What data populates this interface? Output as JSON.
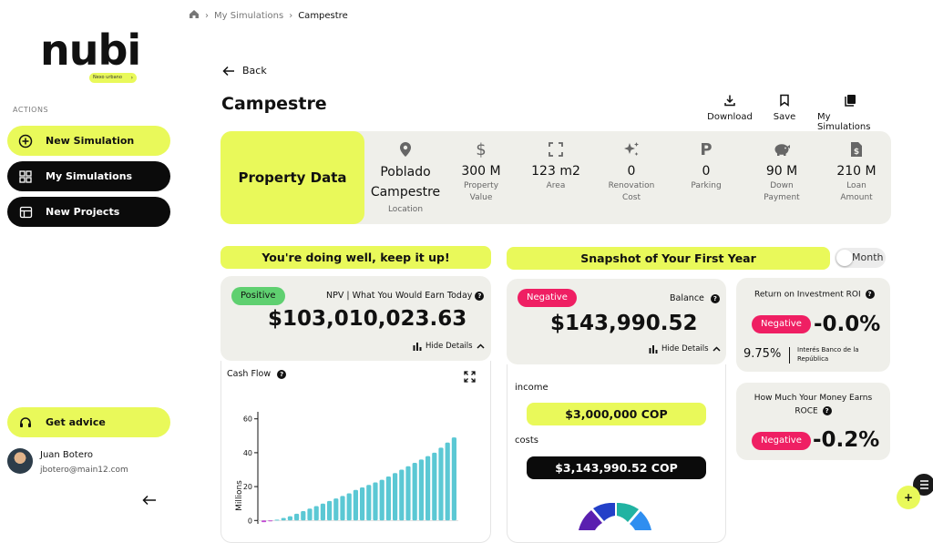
{
  "sidebar": {
    "logo_text": "nubi",
    "logo_tag": "Nexo urbano",
    "section_label": "ACTIONS",
    "buttons": [
      {
        "label": "New Simulation",
        "icon": "plus-circle-icon"
      },
      {
        "label": "My Simulations",
        "icon": "grid-icon"
      },
      {
        "label": "New Projects",
        "icon": "store-icon"
      }
    ],
    "advice_label": "Get advice",
    "user": {
      "name": "Juan Botero",
      "email": "jbotero@main12.com"
    }
  },
  "breadcrumb": {
    "items": [
      "My Simulations",
      "Campestre"
    ]
  },
  "back_label": "Back",
  "page_title": "Campestre",
  "actions": [
    {
      "label": "Download",
      "icon": "download-icon"
    },
    {
      "label": "Save",
      "icon": "bookmark-icon"
    },
    {
      "label": "My Simulations",
      "icon": "collection-icon"
    }
  ],
  "property": {
    "heading": "Property Data",
    "items": [
      {
        "value": "Poblado Campestre",
        "label": "Location",
        "icon": "location-pin-icon"
      },
      {
        "value": "300 M",
        "label": "Property Value",
        "icon": "dollar-icon"
      },
      {
        "value": "123 m2",
        "label": "Area",
        "icon": "expand-icon"
      },
      {
        "value": "0",
        "label": "Renovation Cost",
        "icon": "sparkles-icon"
      },
      {
        "value": "0",
        "label": "Parking",
        "icon": "parking-icon"
      },
      {
        "value": "90 M",
        "label": "Down Payment",
        "icon": "piggy-bank-icon"
      },
      {
        "value": "210 M",
        "label": "Loan Amount",
        "icon": "money-doc-icon"
      }
    ]
  },
  "npv": {
    "banner": "You're doing well, keep it up!",
    "status": "Positive",
    "label": "NPV | What You Would Earn Today",
    "value": "$103,010,023.63",
    "hide_label": "Hide Details"
  },
  "cashflow": {
    "title": "Cash Flow",
    "ylabel": "Millions"
  },
  "chart_data": {
    "type": "bar",
    "title": "Cash Flow",
    "ylabel": "Millions",
    "ylim": [
      -2,
      62
    ],
    "yticks": [
      0,
      20,
      40,
      60
    ],
    "values": [
      -1,
      -0.5,
      0.5,
      1.5,
      2.5,
      4,
      5.5,
      7,
      8.5,
      10,
      11.5,
      13,
      14.5,
      16,
      18,
      19.5,
      21,
      22.5,
      24,
      26,
      28,
      30,
      32,
      34,
      36,
      38,
      40,
      43,
      46,
      49
    ],
    "colors": {
      "negative": "#c44bd6",
      "positive": "#5bc8d4"
    }
  },
  "snapshot": {
    "banner": "Snapshot of Your First Year",
    "toggle_label": "Month",
    "status": "Negative",
    "label": "Balance",
    "value": "$143,990.52",
    "hide_label": "Hide Details",
    "income_label": "income",
    "income_value": "$3,000,000 COP",
    "costs_label": "costs",
    "costs_value": "$3,143,990.52 COP"
  },
  "roi": {
    "title": "Return on Investment ROI",
    "status": "Negative",
    "value": "-0.0%",
    "bank_rate": "9.75%",
    "bank_label": "Interés Banco de la República"
  },
  "roce": {
    "title": "How Much Your Money Earns",
    "subtitle": "ROCE",
    "status": "Negative",
    "value": "-0.2%"
  },
  "colors": {
    "accent": "#e9f95a",
    "negative": "#ef1f63",
    "positive": "#5fd070",
    "panel": "#efefea"
  }
}
